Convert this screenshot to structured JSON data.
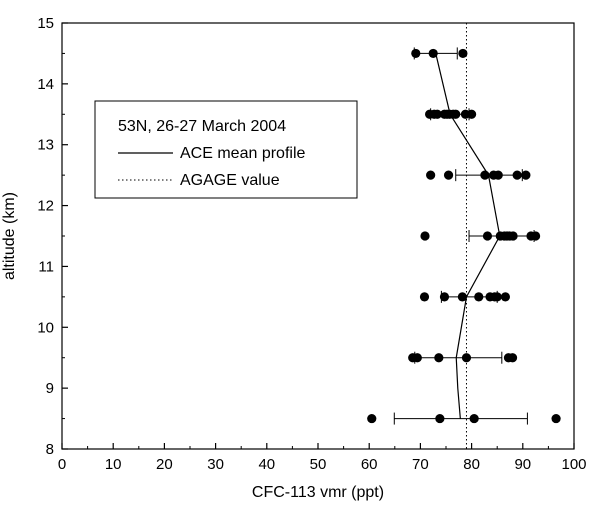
{
  "chart_data": {
    "type": "scatter",
    "xlabel": "CFC-113 vmr (ppt)",
    "ylabel": "altitude (km)",
    "xlim": [
      0,
      100
    ],
    "ylim": [
      8,
      15
    ],
    "x_ticks": [
      0,
      10,
      20,
      30,
      40,
      50,
      60,
      70,
      80,
      90,
      100
    ],
    "y_ticks": [
      8,
      9,
      10,
      11,
      12,
      13,
      14,
      15
    ],
    "grid": false,
    "legend": {
      "placement": "upper-left",
      "title": "53N, 26-27 March 2004",
      "entries": [
        {
          "label": "ACE mean profile",
          "style": "solid"
        },
        {
          "label": "AGAGE value",
          "style": "dotted"
        }
      ]
    },
    "reference_line": {
      "name": "AGAGE value",
      "x": 79
    },
    "mean_profile": {
      "name": "ACE mean profile",
      "points": [
        {
          "x": 77.8,
          "y": 8.5,
          "err_low": 64.9,
          "err_high": 90.9
        },
        {
          "x": 77.3,
          "y": 9.0
        },
        {
          "x": 77.0,
          "y": 9.5,
          "err_low": 68.9,
          "err_high": 85.9
        },
        {
          "x": 79.0,
          "y": 10.5,
          "err_low": 74.1,
          "err_high": 85.0
        },
        {
          "x": 85.5,
          "y": 11.5,
          "err_low": 79.5,
          "err_high": 92.2
        },
        {
          "x": 83.3,
          "y": 12.5,
          "err_low": 76.9,
          "err_high": 89.9
        },
        {
          "x": 75.8,
          "y": 13.5,
          "err_low": 72.0,
          "err_high": 79.5
        },
        {
          "x": 73.0,
          "y": 14.5,
          "err_low": 68.8,
          "err_high": 77.2
        }
      ]
    },
    "scatter_points": [
      {
        "y": 8.5,
        "x": [
          60.5,
          73.8,
          80.5,
          96.5
        ]
      },
      {
        "y": 9.5,
        "x": [
          68.5,
          69.4,
          73.6,
          79.0,
          87.2,
          88.0
        ]
      },
      {
        "y": 10.5,
        "x": [
          70.8,
          74.7,
          78.2,
          81.4,
          83.6,
          84.5,
          85.0,
          86.6
        ]
      },
      {
        "y": 11.5,
        "x": [
          70.9,
          83.1,
          85.6,
          86.4,
          86.9,
          87.4,
          88.1,
          91.6,
          92.5
        ]
      },
      {
        "y": 12.5,
        "x": [
          72.0,
          75.5,
          82.6,
          84.3,
          85.2,
          88.9,
          90.6
        ]
      },
      {
        "y": 13.5,
        "x": [
          71.8,
          72.7,
          73.3,
          74.7,
          75.2,
          75.7,
          76.4,
          76.9,
          78.8,
          80.0
        ]
      },
      {
        "y": 14.5,
        "x": [
          69.1,
          72.5,
          78.3
        ]
      }
    ]
  }
}
